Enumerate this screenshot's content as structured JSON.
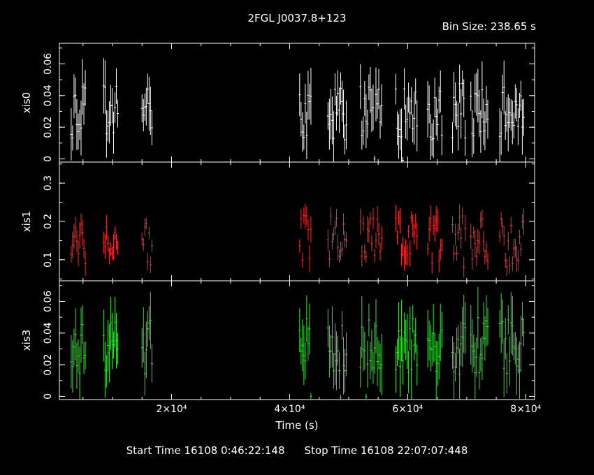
{
  "title": "2FGL J0037.8+123",
  "bin_size": "Bin Size: 238.65 s",
  "footer": {
    "start_label": "Start Time 16108  0:46:22:148",
    "stop_label": "Stop Time 16108 22:07:07:448"
  },
  "colors": {
    "xis0": "#ffffff",
    "xis1": "#ff2a2a",
    "xis3": "#2ee62e",
    "axes": "#ffffff",
    "background": "#000000"
  },
  "chart_data": {
    "type": "scatter",
    "xlabel": "Time (s)",
    "xlim": [
      1000,
      81500
    ],
    "x_ticks": [
      20000,
      40000,
      60000,
      80000
    ],
    "x_tick_labels": [
      "2×10⁴",
      "4×10⁴",
      "6×10⁴",
      "8×10⁴"
    ],
    "segments": [
      [
        3000,
        5500
      ],
      [
        8500,
        11000
      ],
      [
        15000,
        16700
      ],
      [
        41700,
        43800
      ],
      [
        46500,
        49800
      ],
      [
        52000,
        55600
      ],
      [
        58000,
        61600
      ],
      [
        63400,
        65800
      ],
      [
        67600,
        69900
      ],
      [
        70700,
        73800
      ],
      [
        75600,
        79700
      ]
    ],
    "panels": [
      {
        "name": "xis0",
        "ylabel": "xis0",
        "ylim": [
          -0.002,
          0.073
        ],
        "yticks": [
          0,
          0.02,
          0.04,
          0.06
        ],
        "ytick_labels": [
          "0",
          "0.02",
          "0.04",
          "0.06"
        ],
        "base": 0.03,
        "amp": 0.018,
        "err": 0.013,
        "low_scatter": true
      },
      {
        "name": "xis1",
        "ylabel": "xis1",
        "ylim": [
          0.045,
          0.355
        ],
        "yticks": [
          0.1,
          0.2,
          0.3
        ],
        "ytick_labels": [
          "0.1",
          "0.2",
          "0.3"
        ],
        "base": 0.15,
        "amp": 0.07,
        "err": 0.025,
        "low_scatter": false
      },
      {
        "name": "xis3",
        "ylabel": "xis3",
        "ylim": [
          -0.002,
          0.073
        ],
        "yticks": [
          0,
          0.02,
          0.04,
          0.06
        ],
        "ytick_labels": [
          "0",
          "0.02",
          "0.04",
          "0.06"
        ],
        "base": 0.032,
        "amp": 0.018,
        "err": 0.014,
        "low_scatter": true
      }
    ]
  }
}
